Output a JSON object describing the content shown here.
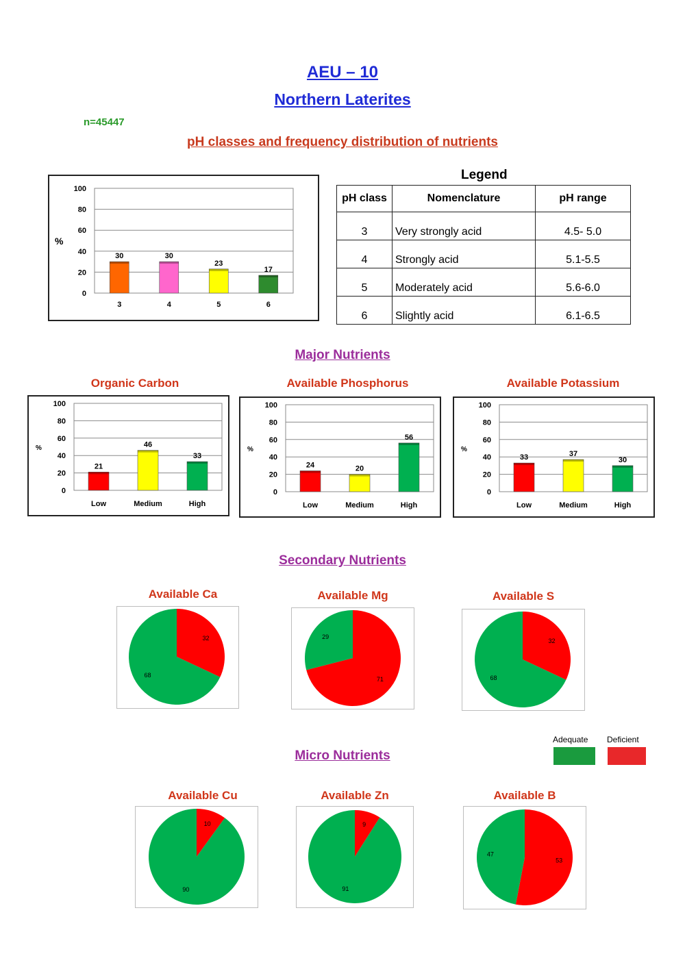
{
  "header": {
    "title": "AEU – 10",
    "subtitle": "Northern Laterites",
    "n": "n=45447",
    "ph_section": "pH classes and frequency distribution of nutrients"
  },
  "legend_table": {
    "title": "Legend",
    "headers": [
      "pH class",
      "Nomenclature",
      "pH range"
    ],
    "rows": [
      [
        "3",
        "Very strongly acid",
        "4.5- 5.0"
      ],
      [
        "4",
        "Strongly acid",
        "5.1-5.5"
      ],
      [
        "5",
        "Moderately acid",
        "5.6-6.0"
      ],
      [
        "6",
        "Slightly acid",
        "6.1-6.5"
      ]
    ]
  },
  "sections": {
    "major": "Major Nutrients",
    "secondary": "Secondary Nutrients",
    "micro": "Micro Nutrients"
  },
  "key": {
    "adequate": "Adequate",
    "deficient": "Deficient",
    "adequate_color": "#1a9b3e",
    "deficient_color": "#e8282a"
  },
  "colors": {
    "green": "#00b050",
    "red": "#ff0000",
    "yellow": "#ffff00",
    "orange": "#ff6600",
    "pink": "#ff66cc",
    "dark_green": "#2e8b2e"
  },
  "chart_data": [
    {
      "id": "ph",
      "type": "bar",
      "title": "",
      "ylabel": "%",
      "ylim": [
        0,
        100
      ],
      "yticks": [
        0,
        20,
        40,
        60,
        80,
        100
      ],
      "categories": [
        "3",
        "4",
        "5",
        "6"
      ],
      "values": [
        30,
        30,
        23,
        17
      ],
      "colors": [
        "#ff6600",
        "#ff66cc",
        "#ffff00",
        "#2e8b2e"
      ]
    },
    {
      "id": "oc",
      "type": "bar",
      "title": "Organic Carbon",
      "ylabel": "%",
      "ylim": [
        0,
        100
      ],
      "yticks": [
        0,
        20,
        40,
        60,
        80,
        100
      ],
      "categories": [
        "Low",
        "Medium",
        "High"
      ],
      "values": [
        21,
        46,
        33
      ],
      "colors": [
        "#ff0000",
        "#ffff00",
        "#00b050"
      ]
    },
    {
      "id": "p",
      "type": "bar",
      "title": "Available Phosphorus",
      "ylabel": "%",
      "ylim": [
        0,
        100
      ],
      "yticks": [
        0,
        20,
        40,
        60,
        80,
        100
      ],
      "categories": [
        "Low",
        "Medium",
        "High"
      ],
      "values": [
        24,
        20,
        56
      ],
      "colors": [
        "#ff0000",
        "#ffff00",
        "#00b050"
      ]
    },
    {
      "id": "k",
      "type": "bar",
      "title": "Available Potassium",
      "ylabel": "%",
      "ylim": [
        0,
        100
      ],
      "yticks": [
        0,
        20,
        40,
        60,
        80,
        100
      ],
      "categories": [
        "Low",
        "Medium",
        "High"
      ],
      "values": [
        33,
        37,
        30
      ],
      "colors": [
        "#ff0000",
        "#ffff00",
        "#00b050"
      ]
    },
    {
      "id": "ca",
      "type": "pie",
      "title": "Available Ca",
      "categories": [
        "Deficient",
        "Adequate"
      ],
      "values": [
        32,
        68
      ]
    },
    {
      "id": "mg",
      "type": "pie",
      "title": "Available Mg",
      "categories": [
        "Deficient",
        "Adequate"
      ],
      "values": [
        71,
        29
      ]
    },
    {
      "id": "s",
      "type": "pie",
      "title": "Available S",
      "categories": [
        "Deficient",
        "Adequate"
      ],
      "values": [
        32,
        68
      ]
    },
    {
      "id": "cu",
      "type": "pie",
      "title": "Available Cu",
      "categories": [
        "Deficient",
        "Adequate"
      ],
      "values": [
        10,
        90
      ]
    },
    {
      "id": "zn",
      "type": "pie",
      "title": "Available Zn",
      "categories": [
        "Deficient",
        "Adequate"
      ],
      "values": [
        9,
        91
      ]
    },
    {
      "id": "b",
      "type": "pie",
      "title": "Available B",
      "categories": [
        "Deficient",
        "Adequate"
      ],
      "values": [
        53,
        47
      ]
    }
  ]
}
